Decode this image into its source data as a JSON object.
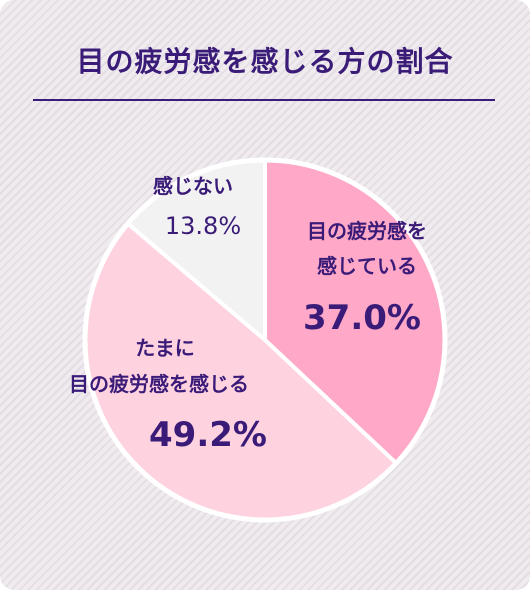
{
  "title": "目の疲労感を感じる方の割合",
  "colors": {
    "title": "#3a1c78",
    "slice_1": "#ffa8c8",
    "slice_2": "#ffd2e0",
    "slice_3": "#f2f2f2",
    "border": "#ffffff"
  },
  "chart_data": {
    "type": "pie",
    "title": "目の疲労感を感じる方の割合",
    "slices": [
      {
        "label": "目の疲労感を感じている",
        "label_lines": [
          "目の疲労感を",
          "感じている"
        ],
        "value": 37.0,
        "display": "37.0%"
      },
      {
        "label": "たまに目の疲労感を感じる",
        "label_lines": [
          "たまに",
          "目の疲労感を感じる"
        ],
        "value": 49.2,
        "display": "49.2%"
      },
      {
        "label": "感じない",
        "label_lines": [
          "感じない"
        ],
        "value": 13.8,
        "display": "13.8%"
      }
    ],
    "start": "12 o'clock",
    "direction": "clockwise"
  }
}
